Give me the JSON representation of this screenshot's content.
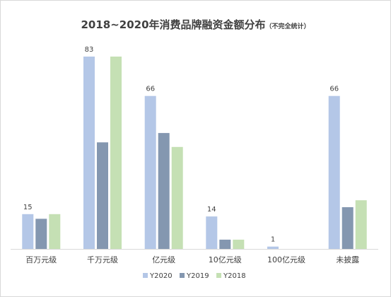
{
  "chart_data": {
    "type": "bar",
    "title": "2018~2020年消费品牌融资金额分布",
    "subtitle": "（不完全统计）",
    "xlabel": "",
    "ylabel": "",
    "ylim": [
      0,
      83
    ],
    "grid": false,
    "legend_position": "bottom",
    "categories": [
      "百万元级",
      "千万元级",
      "亿元级",
      "10亿元级",
      "100亿元级",
      "未披露"
    ],
    "series": [
      {
        "name": "Y2020",
        "color": "#b4c7e7",
        "values": [
          15,
          83,
          66,
          14,
          1,
          66
        ],
        "show_labels": true
      },
      {
        "name": "Y2019",
        "color": "#8497b0",
        "values": [
          13,
          46,
          50,
          4,
          0,
          18
        ],
        "show_labels": false
      },
      {
        "name": "Y2018",
        "color": "#c5e0b4",
        "values": [
          15,
          83,
          44,
          4,
          0,
          21
        ],
        "show_labels": false
      }
    ]
  }
}
